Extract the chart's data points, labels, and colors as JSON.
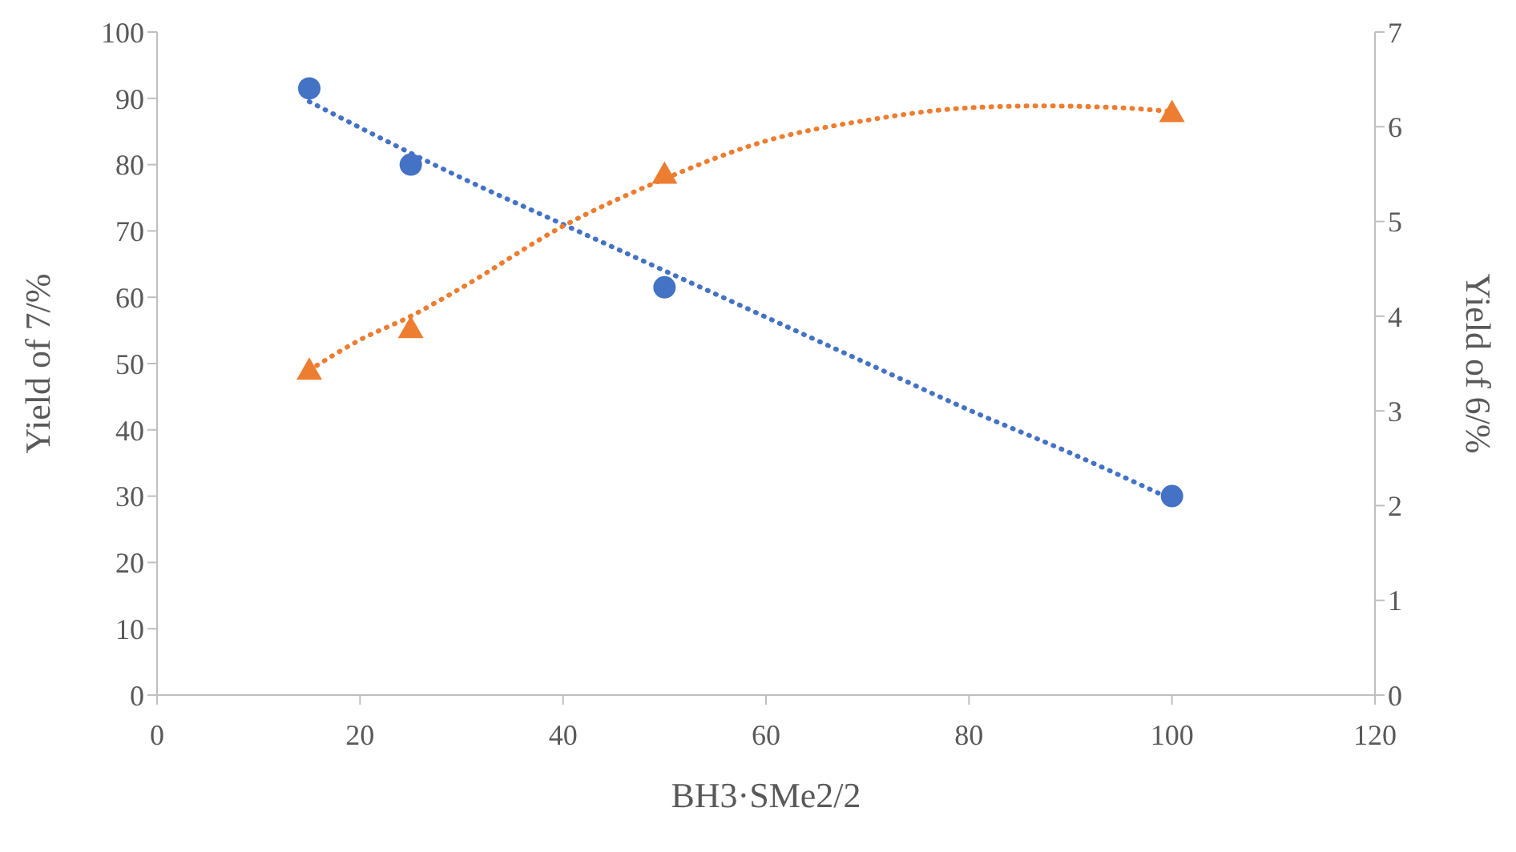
{
  "chart_data": {
    "type": "scatter",
    "xlabel": "BH3·SMe2/2",
    "ylabel": "Yield of 7/%",
    "y2label": "Yield of 6/%",
    "xlim": [
      0,
      120
    ],
    "xticks": [
      0,
      20,
      40,
      60,
      80,
      100,
      120
    ],
    "ylim": [
      0,
      100
    ],
    "yticks": [
      0,
      10,
      20,
      30,
      40,
      50,
      60,
      70,
      80,
      90,
      100
    ],
    "y2lim": [
      0,
      7
    ],
    "y2ticks": [
      0,
      1,
      2,
      3,
      4,
      5,
      6,
      7
    ],
    "grid": false,
    "series": [
      {
        "color": "#4472c4",
        "marker": "circle",
        "x": [
          15,
          25,
          50,
          100
        ],
        "values": [
          91.5,
          80,
          61.5,
          30
        ]
      },
      {
        "color": "#ed7d31",
        "marker": "triangle",
        "axis": "y2",
        "x": [
          15,
          25,
          50,
          100
        ],
        "values": [
          3.43,
          3.87,
          5.5,
          6.15
        ]
      },
      {
        "type": "line",
        "color": "#4472c4",
        "line_style": "dotted",
        "marker": "none",
        "x": [
          15,
          30,
          40,
          50,
          60,
          70,
          80,
          90,
          100
        ],
        "values": [
          89.5,
          78,
          71,
          64,
          57,
          50,
          43,
          36.5,
          29.5
        ]
      },
      {
        "type": "line",
        "color": "#ed7d31",
        "line_style": "dotted",
        "marker": "none",
        "axis": "y2",
        "x": [
          15,
          20,
          25,
          30,
          40,
          50,
          60,
          70,
          80,
          87,
          95,
          100
        ],
        "values": [
          3.43,
          3.75,
          4.0,
          4.3,
          4.95,
          5.45,
          5.85,
          6.07,
          6.2,
          6.22,
          6.2,
          6.16
        ]
      }
    ]
  }
}
